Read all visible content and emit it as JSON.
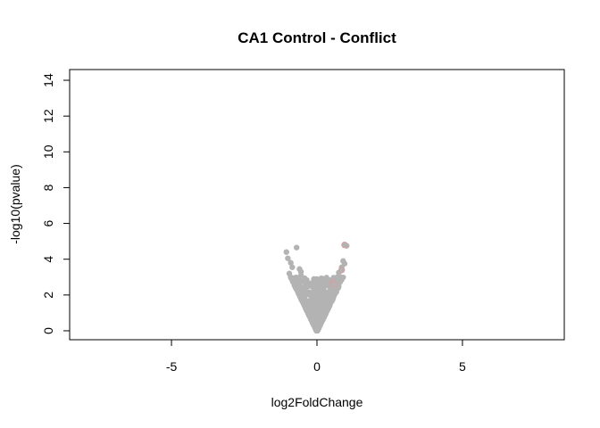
{
  "chart_data": {
    "type": "scatter",
    "title": "CA1 Control - Conflict",
    "xlabel": "log2FoldChange",
    "ylabel": "-log10(pvalue)",
    "xlim": [
      -8.5,
      8.5
    ],
    "ylim": [
      -0.5,
      14.6
    ],
    "xticks": [
      -5,
      0,
      5
    ],
    "yticks": [
      0,
      2,
      4,
      6,
      8,
      10,
      12,
      14
    ],
    "grid": false,
    "point_color": "#b3b3b3",
    "highlight_color": "#d4a0a0",
    "volcano_cloud": {
      "description_points": "dense gray V-shaped cloud of genes centered at x=0",
      "max_abs_x": 0.95,
      "max_y": 3.0
    },
    "points": [
      {
        "x": 1.02,
        "y": 4.75
      },
      {
        "x": -0.7,
        "y": 4.65
      },
      {
        "x": -1.05,
        "y": 4.4
      },
      {
        "x": -1.0,
        "y": 4.05
      },
      {
        "x": -0.9,
        "y": 3.8
      },
      {
        "x": -0.85,
        "y": 3.55
      },
      {
        "x": -0.6,
        "y": 3.45
      },
      {
        "x": -0.55,
        "y": 3.3
      },
      {
        "x": -0.55,
        "y": 3.1
      },
      {
        "x": 0.9,
        "y": 3.9
      },
      {
        "x": 0.95,
        "y": 3.75
      },
      {
        "x": 0.85,
        "y": 3.55
      },
      {
        "x": 0.75,
        "y": 3.25
      },
      {
        "x": 0.7,
        "y": 3.0
      },
      {
        "x": -0.95,
        "y": 3.2
      },
      {
        "x": -0.1,
        "y": 2.9
      },
      {
        "x": 0.35,
        "y": 2.65
      },
      {
        "x": 0.4,
        "y": 2.75
      },
      {
        "x": 0.55,
        "y": 2.7
      },
      {
        "x": -0.45,
        "y": 2.8
      },
      {
        "x": 0.45,
        "y": 2.2
      },
      {
        "x": 0.3,
        "y": 1.9
      }
    ],
    "highlighted_points": [
      {
        "x": 0.85,
        "y": 3.4
      },
      {
        "x": 0.55,
        "y": 2.7
      },
      {
        "x": 0.6,
        "y": 2.6
      },
      {
        "x": 0.95,
        "y": 4.8
      }
    ]
  }
}
